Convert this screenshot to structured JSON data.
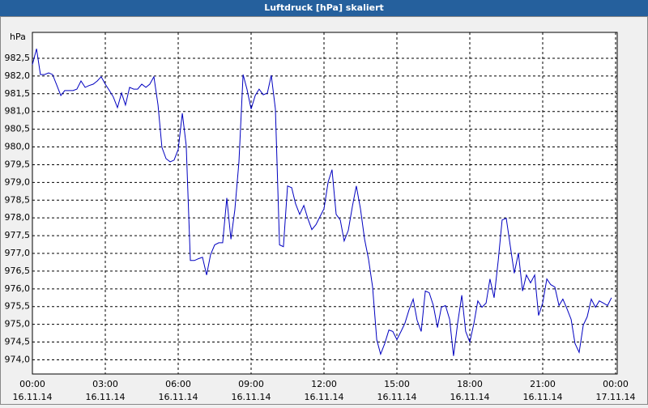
{
  "chart_data": {
    "type": "line",
    "title": "Luftdruck [hPa] skaliert",
    "y_unit": "hPa",
    "x": [
      0,
      0.17,
      0.33,
      0.5,
      0.67,
      0.83,
      1,
      1.17,
      1.33,
      1.5,
      1.67,
      1.83,
      2,
      2.17,
      2.33,
      2.5,
      2.67,
      2.83,
      3,
      3.17,
      3.33,
      3.5,
      3.67,
      3.83,
      4,
      4.17,
      4.33,
      4.5,
      4.67,
      4.83,
      5,
      5.17,
      5.33,
      5.5,
      5.67,
      5.83,
      6,
      6.17,
      6.33,
      6.5,
      6.67,
      6.83,
      7,
      7.17,
      7.33,
      7.5,
      7.67,
      7.83,
      8,
      8.17,
      8.33,
      8.5,
      8.67,
      8.83,
      9,
      9.17,
      9.33,
      9.5,
      9.67,
      9.83,
      10,
      10.17,
      10.33,
      10.5,
      10.67,
      10.83,
      11,
      11.17,
      11.33,
      11.5,
      11.67,
      11.83,
      12,
      12.17,
      12.33,
      12.5,
      12.67,
      12.83,
      13,
      13.17,
      13.33,
      13.5,
      13.67,
      13.83,
      14,
      14.17,
      14.33,
      14.5,
      14.67,
      14.83,
      15,
      15.17,
      15.33,
      15.5,
      15.67,
      15.83,
      16,
      16.17,
      16.33,
      16.5,
      16.67,
      16.83,
      17,
      17.17,
      17.33,
      17.5,
      17.67,
      17.83,
      18,
      18.17,
      18.33,
      18.5,
      18.67,
      18.83,
      19,
      19.17,
      19.33,
      19.5,
      19.67,
      19.83,
      20,
      20.17,
      20.33,
      20.5,
      20.67,
      20.83,
      21,
      21.17,
      21.33,
      21.5,
      21.67,
      21.83,
      22,
      22.17,
      22.33,
      22.5,
      22.67,
      22.83,
      23,
      23.17,
      23.33,
      23.5,
      23.67,
      23.83
    ],
    "series": [
      {
        "color": "#0000c0",
        "values": [
          982.32,
          982.77,
          982.04,
          982.04,
          982.09,
          982.04,
          981.75,
          981.45,
          981.59,
          981.59,
          981.59,
          981.63,
          981.86,
          981.68,
          981.73,
          981.77,
          981.86,
          981.98,
          981.77,
          981.59,
          981.41,
          981.11,
          981.52,
          981.18,
          981.68,
          981.63,
          981.63,
          981.77,
          981.68,
          981.77,
          981.98,
          981.18,
          979.99,
          979.67,
          979.58,
          979.63,
          979.93,
          980.95,
          980.04,
          976.8,
          976.8,
          976.85,
          976.89,
          976.39,
          976.96,
          977.24,
          977.3,
          977.3,
          978.56,
          977.4,
          978.22,
          979.58,
          982.04,
          981.63,
          981.07,
          981.45,
          981.63,
          981.47,
          981.52,
          982.02,
          981.07,
          977.24,
          977.19,
          978.9,
          978.85,
          978.4,
          978.1,
          978.35,
          977.99,
          977.67,
          977.81,
          978.03,
          978.26,
          979.01,
          979.36,
          978.1,
          977.94,
          977.35,
          977.65,
          978.33,
          978.9,
          978.26,
          977.4,
          976.85,
          976.05,
          974.57,
          974.16,
          974.46,
          974.84,
          974.8,
          974.57,
          974.8,
          975.03,
          975.41,
          975.71,
          975.12,
          974.8,
          975.94,
          975.89,
          975.53,
          974.91,
          975.48,
          975.53,
          975.14,
          974.11,
          975.03,
          975.82,
          974.8,
          974.5,
          975.03,
          975.66,
          975.48,
          975.6,
          976.28,
          975.75,
          976.8,
          977.94,
          977.99,
          977.19,
          976.44,
          977.01,
          975.94,
          976.39,
          976.17,
          976.39,
          975.25,
          975.6,
          976.28,
          976.12,
          976.05,
          975.53,
          975.71,
          975.44,
          975.14,
          974.46,
          974.21,
          974.98,
          975.21,
          975.71,
          975.48,
          975.66,
          975.6,
          975.53,
          975.75
        ]
      }
    ],
    "xlim": [
      0,
      24
    ],
    "xticks": [
      {
        "value": 0,
        "label": [
          "00:00",
          "16.11.14"
        ]
      },
      {
        "value": 3,
        "label": [
          "03:00",
          "16.11.14"
        ]
      },
      {
        "value": 6,
        "label": [
          "06:00",
          "16.11.14"
        ]
      },
      {
        "value": 9,
        "label": [
          "09:00",
          "16.11.14"
        ]
      },
      {
        "value": 12,
        "label": [
          "12:00",
          "16.11.14"
        ]
      },
      {
        "value": 15,
        "label": [
          "15:00",
          "16.11.14"
        ]
      },
      {
        "value": 18,
        "label": [
          "18:00",
          "16.11.14"
        ]
      },
      {
        "value": 21,
        "label": [
          "21:00",
          "16.11.14"
        ]
      },
      {
        "value": 24,
        "label": [
          "00:00",
          "17.11.14"
        ]
      }
    ],
    "ylim": [
      973.6,
      983.23
    ],
    "yticks": [
      {
        "value": 974,
        "label": "974,0"
      },
      {
        "value": 974.5,
        "label": "974,5"
      },
      {
        "value": 975,
        "label": "975,0"
      },
      {
        "value": 975.5,
        "label": "975,5"
      },
      {
        "value": 976,
        "label": "976,0"
      },
      {
        "value": 976.5,
        "label": "976,5"
      },
      {
        "value": 977,
        "label": "977,0"
      },
      {
        "value": 977.5,
        "label": "977,5"
      },
      {
        "value": 978,
        "label": "978,0"
      },
      {
        "value": 978.5,
        "label": "978,5"
      },
      {
        "value": 979,
        "label": "979,0"
      },
      {
        "value": 979.5,
        "label": "979,5"
      },
      {
        "value": 980,
        "label": "980,0"
      },
      {
        "value": 980.5,
        "label": "980,5"
      },
      {
        "value": 981,
        "label": "981,0"
      },
      {
        "value": 981.5,
        "label": "981,5"
      },
      {
        "value": 982,
        "label": "982,0"
      },
      {
        "value": 982.5,
        "label": "982,5"
      }
    ],
    "grid": true
  }
}
